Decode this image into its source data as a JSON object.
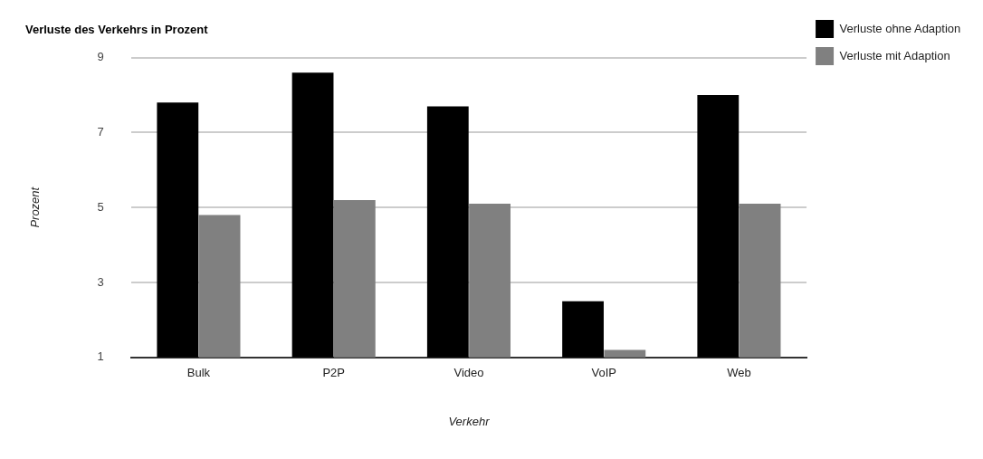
{
  "chart_data": {
    "type": "bar",
    "title": "Verluste des Verkehrs in Prozent",
    "xlabel": "Verkehr",
    "ylabel": "Prozent",
    "categories": [
      "Bulk",
      "P2P",
      "Video",
      "VoIP",
      "Web"
    ],
    "series": [
      {
        "name": "Verluste ohne Adaption",
        "color": "#000000",
        "values": [
          7.8,
          8.6,
          7.7,
          2.5,
          8.0
        ]
      },
      {
        "name": "Verluste mit Adaption",
        "color": "#808080",
        "values": [
          4.8,
          5.2,
          5.1,
          1.2,
          5.1
        ]
      }
    ],
    "ylim": [
      1,
      9
    ],
    "yticks": [
      1,
      3,
      5,
      7,
      9
    ],
    "grid": "y",
    "legend": "top right"
  }
}
